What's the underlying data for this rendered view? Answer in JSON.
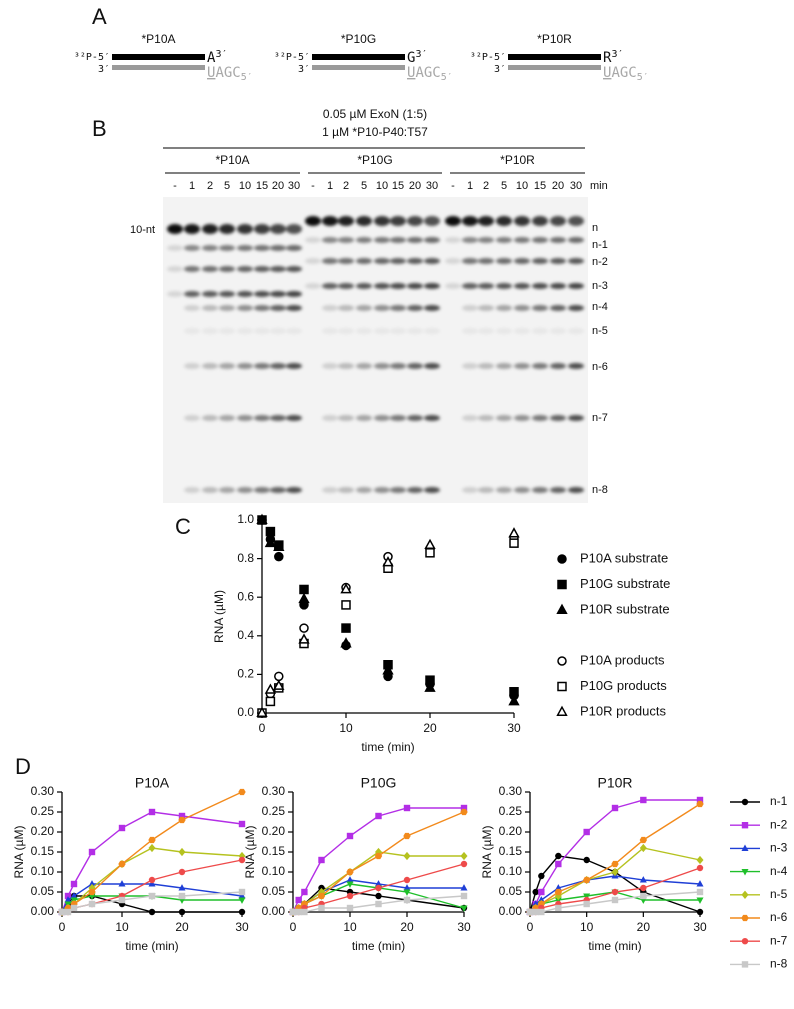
{
  "panel_a": {
    "label": "A",
    "constructs": [
      {
        "name": "*P10A",
        "top_end": "³²P-5′",
        "bottom_end": "3′",
        "base": "A",
        "base_end": "3′",
        "comp_first": "U",
        "comp_rest": "AGC",
        "comp_end": "5′"
      },
      {
        "name": "*P10G",
        "top_end": "³²P-5′",
        "bottom_end": "3′",
        "base": "G",
        "base_end": "3′",
        "comp_first": "U",
        "comp_rest": "AGC",
        "comp_end": "5′"
      },
      {
        "name": "*P10R",
        "top_end": "³²P-5′",
        "bottom_end": "3′",
        "base": "R",
        "base_end": "3′",
        "comp_first": "U",
        "comp_rest": "AGC",
        "comp_end": "5′"
      }
    ]
  },
  "panel_b": {
    "label": "B",
    "conditions": [
      "0.05 µM ExoN (1:5)",
      "1 µM *P10-P40:T57"
    ],
    "groups": [
      "*P10A",
      "*P10G",
      "*P10R"
    ],
    "lanes": [
      "-",
      "1",
      "2",
      "5",
      "10",
      "15",
      "20",
      "30"
    ],
    "lane_unit": "min",
    "marker_label": "10-nt",
    "bands": [
      "n",
      "n-1",
      "n-2",
      "n-3",
      "n-4",
      "n-5",
      "n-6",
      "n-7",
      "n-8"
    ]
  },
  "chart_data": [
    {
      "type": "scatter",
      "panel_label": "C",
      "xlabel": "time (min)",
      "ylabel": "RNA (µM)",
      "x": [
        0,
        1,
        2,
        5,
        10,
        15,
        20,
        30
      ],
      "xlim": [
        0,
        30
      ],
      "xticks": [
        0,
        10,
        20,
        30
      ],
      "ylim": [
        0,
        1
      ],
      "yticks": [
        {
          "value": 0,
          "label": "0.0"
        },
        {
          "value": 0.2,
          "label": "0.2"
        },
        {
          "value": 0.4,
          "label": "0.4"
        },
        {
          "value": 0.6,
          "label": "0.6"
        },
        {
          "value": 0.8,
          "label": "0.8"
        },
        {
          "value": 1,
          "label": "1.0"
        }
      ],
      "legend": "right",
      "series": [
        {
          "name": "P10A substrate",
          "color": "#000000",
          "marker": "circle",
          "filled": true,
          "values": [
            1.0,
            0.9,
            0.81,
            0.56,
            0.35,
            0.19,
            0.15,
            0.09
          ]
        },
        {
          "name": "P10G substrate",
          "color": "#000000",
          "marker": "square",
          "filled": true,
          "values": [
            1.0,
            0.94,
            0.87,
            0.64,
            0.44,
            0.25,
            0.17,
            0.11
          ]
        },
        {
          "name": "P10R substrate",
          "color": "#000000",
          "marker": "triangle",
          "filled": true,
          "values": [
            1.0,
            0.88,
            0.86,
            0.59,
            0.36,
            0.22,
            0.13,
            0.06
          ]
        },
        {
          "name": "P10A products",
          "color": "#000000",
          "marker": "circle",
          "filled": false,
          "values": [
            0,
            0.1,
            0.19,
            0.44,
            0.65,
            0.81,
            0.85,
            0.91
          ]
        },
        {
          "name": "P10G products",
          "color": "#000000",
          "marker": "square",
          "filled": false,
          "values": [
            0,
            0.06,
            0.13,
            0.36,
            0.56,
            0.75,
            0.83,
            0.88
          ]
        },
        {
          "name": "P10R products",
          "color": "#000000",
          "marker": "triangle",
          "filled": false,
          "values": [
            0,
            0.12,
            0.14,
            0.38,
            0.64,
            0.78,
            0.87,
            0.93
          ]
        }
      ]
    },
    {
      "type": "line",
      "panel_label": "D",
      "title": "P10A",
      "xlabel": "time (min)",
      "ylabel": "RNA (µM)",
      "x": [
        0,
        1,
        2,
        5,
        10,
        15,
        20,
        30
      ],
      "xlim": [
        0,
        30
      ],
      "xticks": [
        0,
        10,
        20,
        30
      ],
      "ylim": [
        0,
        0.3
      ],
      "yticks": [
        {
          "value": 0,
          "label": "0.00"
        },
        {
          "value": 0.05,
          "label": "0.05"
        },
        {
          "value": 0.1,
          "label": "0.10"
        },
        {
          "value": 0.15,
          "label": "0.15"
        },
        {
          "value": 0.2,
          "label": "0.20"
        },
        {
          "value": 0.25,
          "label": "0.25"
        },
        {
          "value": 0.3,
          "label": "0.30"
        }
      ],
      "series": [
        {
          "values": [
            0,
            0.02,
            0.04,
            0.04,
            0.02,
            0,
            0,
            0
          ]
        },
        {
          "values": [
            0,
            0.04,
            0.07,
            0.15,
            0.21,
            0.25,
            0.24,
            0.22
          ]
        },
        {
          "values": [
            0,
            0.03,
            0.04,
            0.07,
            0.07,
            0.07,
            0.06,
            0.04
          ]
        },
        {
          "values": [
            0,
            0.02,
            0.03,
            0.04,
            0.04,
            0.04,
            0.03,
            0.03
          ]
        },
        {
          "values": [
            0,
            0.01,
            0.02,
            0.06,
            0.12,
            0.16,
            0.15,
            0.14
          ]
        },
        {
          "values": [
            0,
            0.01,
            0.02,
            0.05,
            0.12,
            0.18,
            0.23,
            0.3
          ]
        },
        {
          "values": [
            0,
            0,
            0.01,
            0.02,
            0.04,
            0.08,
            0.1,
            0.13
          ]
        },
        {
          "values": [
            0,
            0,
            0.01,
            0.02,
            0.03,
            0.04,
            0.04,
            0.05
          ]
        }
      ]
    },
    {
      "type": "line",
      "title": "P10G",
      "xlabel": "time (min)",
      "ylabel": "RNA (µM)",
      "x": [
        0,
        1,
        2,
        5,
        10,
        15,
        20,
        30
      ],
      "xlim": [
        0,
        30
      ],
      "xticks": [
        0,
        10,
        20,
        30
      ],
      "ylim": [
        0,
        0.3
      ],
      "yticks": [
        {
          "value": 0,
          "label": "0.00"
        },
        {
          "value": 0.05,
          "label": "0.05"
        },
        {
          "value": 0.1,
          "label": "0.10"
        },
        {
          "value": 0.15,
          "label": "0.15"
        },
        {
          "value": 0.2,
          "label": "0.20"
        },
        {
          "value": 0.25,
          "label": "0.25"
        },
        {
          "value": 0.3,
          "label": "0.30"
        }
      ],
      "series": [
        {
          "values": [
            0,
            0.01,
            0.02,
            0.06,
            0.05,
            0.04,
            0.03,
            0.01
          ]
        },
        {
          "values": [
            0,
            0.03,
            0.05,
            0.13,
            0.19,
            0.24,
            0.26,
            0.26
          ]
        },
        {
          "values": [
            0,
            0.01,
            0.02,
            0.05,
            0.08,
            0.07,
            0.06,
            0.06
          ]
        },
        {
          "values": [
            0,
            0.01,
            0.02,
            0.04,
            0.07,
            0.06,
            0.05,
            0.01
          ]
        },
        {
          "values": [
            0,
            0.01,
            0.02,
            0.05,
            0.1,
            0.15,
            0.14,
            0.14
          ]
        },
        {
          "values": [
            0,
            0.01,
            0.02,
            0.04,
            0.1,
            0.14,
            0.19,
            0.25
          ]
        },
        {
          "values": [
            0,
            0,
            0.01,
            0.02,
            0.04,
            0.06,
            0.08,
            0.12
          ]
        },
        {
          "values": [
            0,
            0,
            0,
            0.01,
            0.01,
            0.02,
            0.03,
            0.04
          ]
        }
      ]
    },
    {
      "type": "line",
      "title": "P10R",
      "xlabel": "time (min)",
      "ylabel": "RNA (µM)",
      "x": [
        0,
        1,
        2,
        5,
        10,
        15,
        20,
        30
      ],
      "xlim": [
        0,
        30
      ],
      "xticks": [
        0,
        10,
        20,
        30
      ],
      "ylim": [
        0,
        0.3
      ],
      "yticks": [
        {
          "value": 0,
          "label": "0.00"
        },
        {
          "value": 0.05,
          "label": "0.05"
        },
        {
          "value": 0.1,
          "label": "0.10"
        },
        {
          "value": 0.15,
          "label": "0.15"
        },
        {
          "value": 0.2,
          "label": "0.20"
        },
        {
          "value": 0.25,
          "label": "0.25"
        },
        {
          "value": 0.3,
          "label": "0.30"
        }
      ],
      "legend": "right",
      "series": [
        {
          "name": "n-1",
          "color": "#000000",
          "marker": "circle",
          "values": [
            0,
            0.05,
            0.09,
            0.14,
            0.13,
            0.1,
            0.05,
            0
          ]
        },
        {
          "name": "n-2",
          "color": "#b32ee6",
          "marker": "square",
          "values": [
            0,
            0.02,
            0.05,
            0.12,
            0.2,
            0.26,
            0.28,
            0.28
          ]
        },
        {
          "name": "n-3",
          "color": "#1f3fd6",
          "marker": "triangle",
          "values": [
            0,
            0.02,
            0.03,
            0.06,
            0.08,
            0.09,
            0.08,
            0.07
          ]
        },
        {
          "name": "n-4",
          "color": "#1fbf2a",
          "marker": "triangle-down",
          "values": [
            0,
            0.01,
            0.02,
            0.03,
            0.04,
            0.05,
            0.03,
            0.03
          ]
        },
        {
          "name": "n-5",
          "color": "#b5c21f",
          "marker": "diamond",
          "values": [
            0,
            0.01,
            0.02,
            0.04,
            0.08,
            0.1,
            0.16,
            0.13
          ]
        },
        {
          "name": "n-6",
          "color": "#f28a1c",
          "marker": "hexagon",
          "values": [
            0,
            0.01,
            0.02,
            0.05,
            0.08,
            0.12,
            0.18,
            0.27
          ]
        },
        {
          "name": "n-7",
          "color": "#ee4a4a",
          "marker": "circle",
          "values": [
            0,
            0,
            0.01,
            0.02,
            0.03,
            0.05,
            0.06,
            0.11
          ]
        },
        {
          "name": "n-8",
          "color": "#c8c8c8",
          "marker": "square",
          "values": [
            0,
            0,
            0,
            0.01,
            0.02,
            0.03,
            0.04,
            0.05
          ]
        }
      ]
    }
  ]
}
